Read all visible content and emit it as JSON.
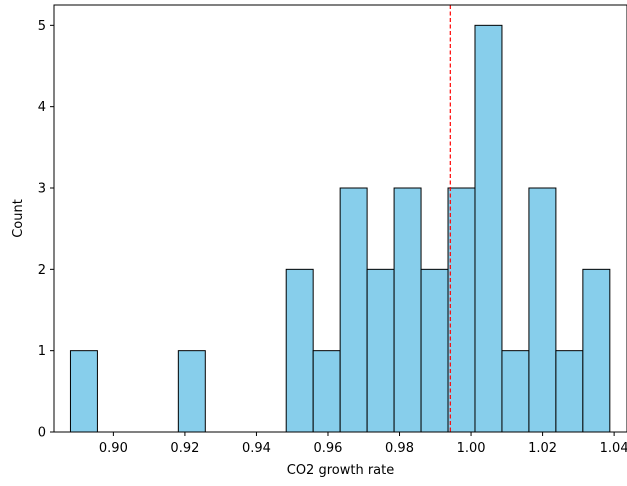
{
  "chart_data": {
    "type": "bar",
    "subtype": "histogram",
    "xlabel": "CO2 growth rate",
    "ylabel": "Count",
    "xlim": [
      0.8834,
      1.0436
    ],
    "ylim": [
      0,
      5.25
    ],
    "x_ticks": [
      0.9,
      0.92,
      0.94,
      0.96,
      0.98,
      1.0,
      1.02,
      1.04
    ],
    "x_tick_labels": [
      "0.90",
      "0.92",
      "0.94",
      "0.96",
      "0.98",
      "1.00",
      "1.02",
      "1.04"
    ],
    "y_ticks": [
      0,
      1,
      2,
      3,
      4,
      5
    ],
    "y_tick_labels": [
      "0",
      "1",
      "2",
      "3",
      "4",
      "5"
    ],
    "bin_start": 0.888,
    "bin_width": 0.00754,
    "counts": [
      1,
      0,
      0,
      0,
      1,
      0,
      0,
      0,
      2,
      1,
      3,
      2,
      3,
      2,
      3,
      5,
      1,
      3,
      1,
      2
    ],
    "bar_color": "#87CEEB",
    "edge_color": "#000000",
    "reference_line": {
      "x": 0.9942,
      "style": "dashed",
      "color": "#ff0000"
    },
    "grid": false
  }
}
